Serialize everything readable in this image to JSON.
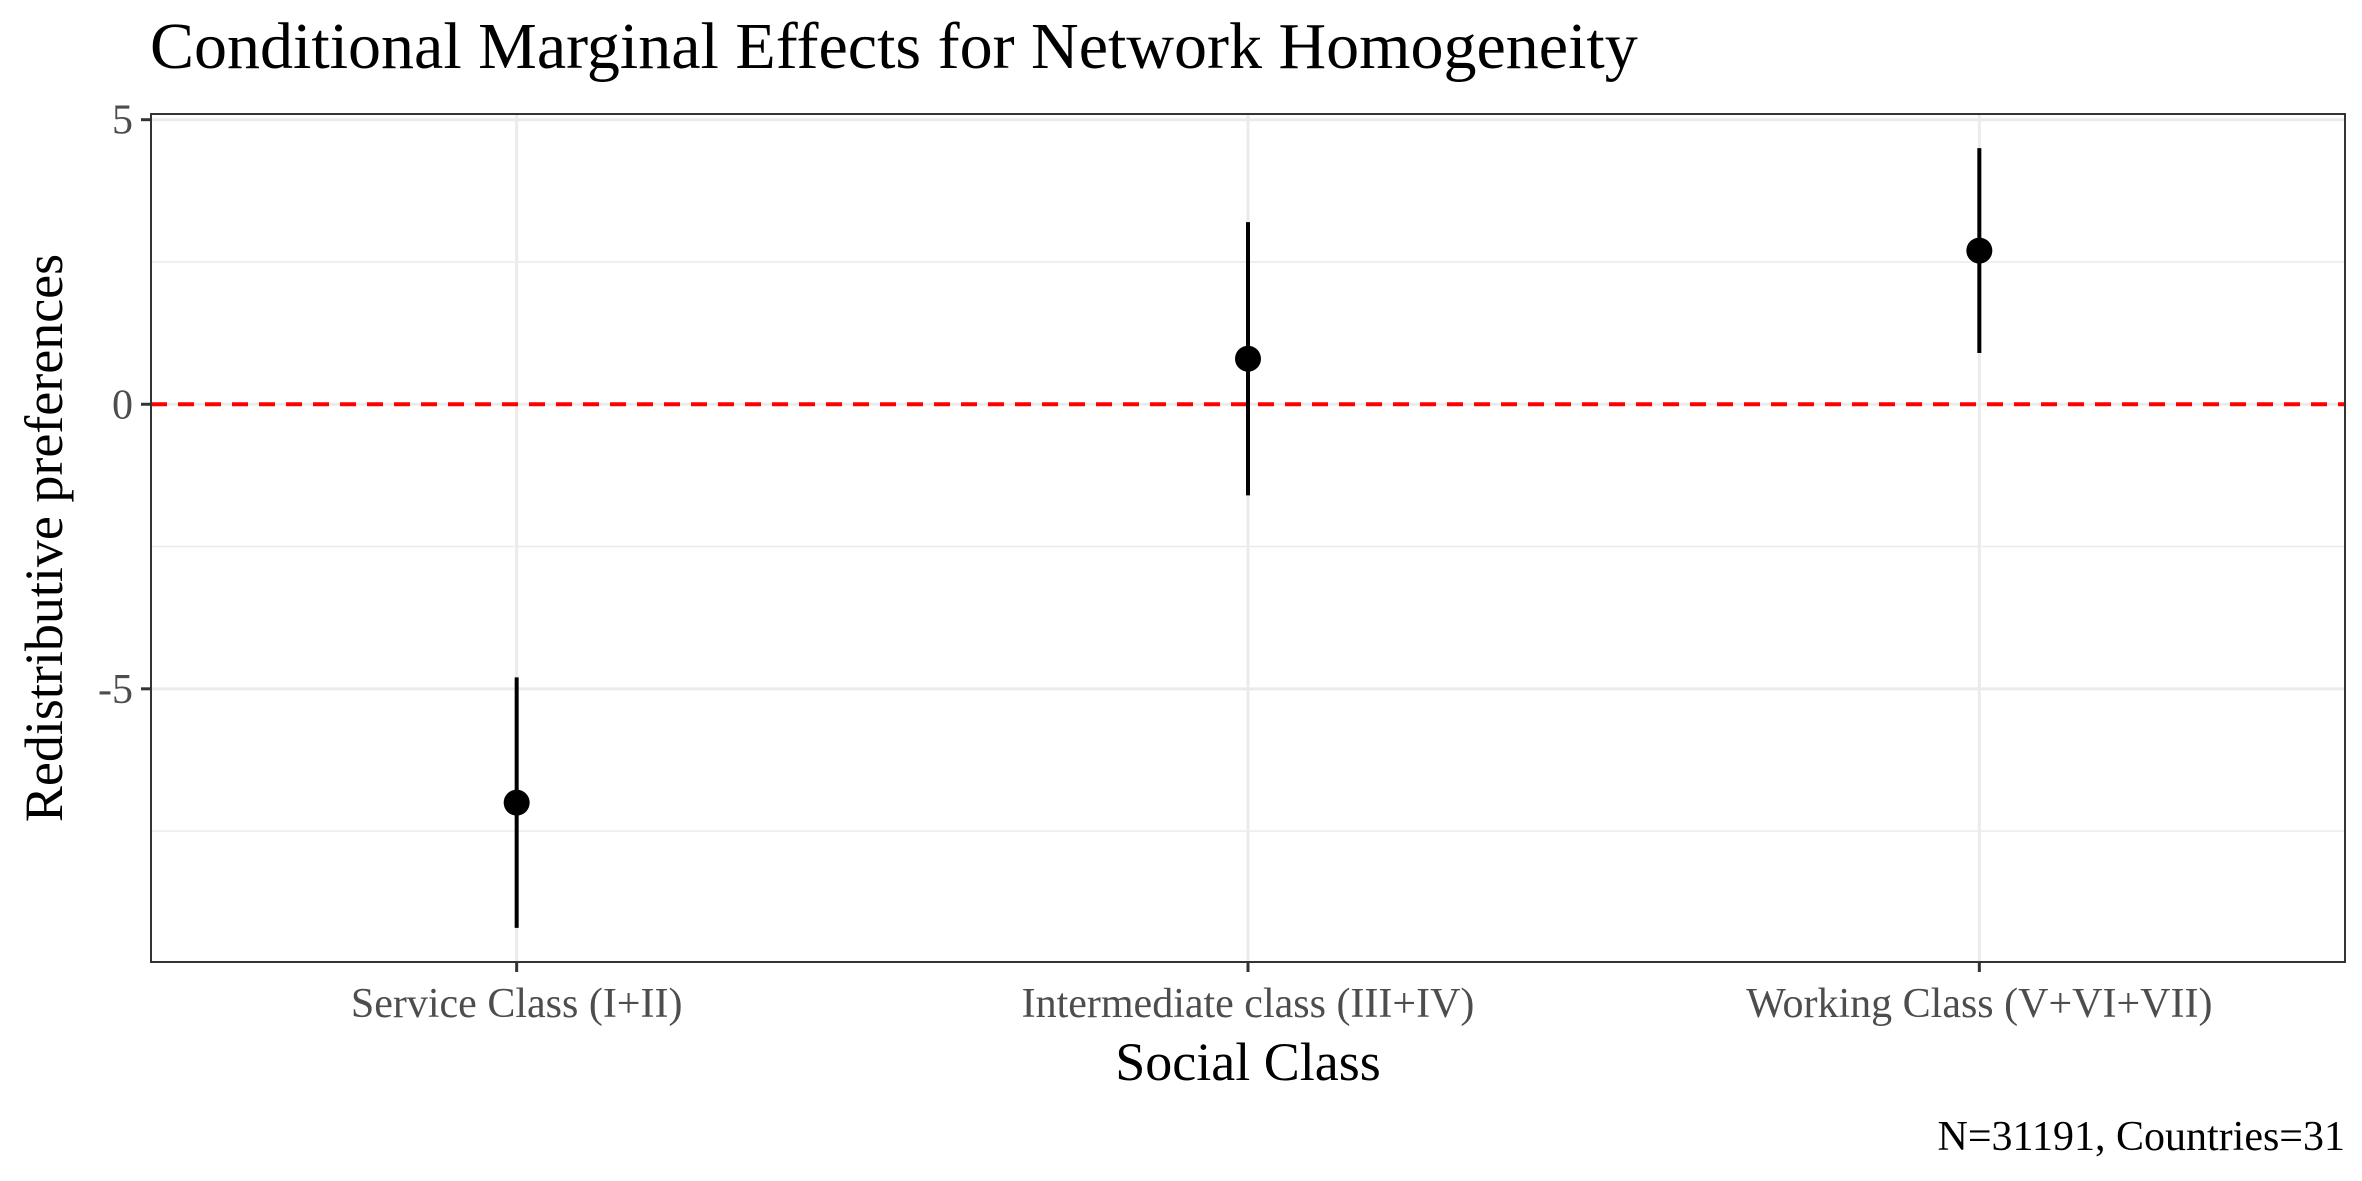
{
  "chart_data": {
    "type": "scatter",
    "title": "Conditional Marginal Effects for Network Homogeneity",
    "xlabel": "Social Class",
    "ylabel": "Redistributive preferences",
    "caption": "N=31191, Countries=31",
    "categories": [
      "Service Class (I+II)",
      "Intermediate class (III+IV)",
      "Working Class (V+VI+VII)"
    ],
    "estimates": [
      -7.0,
      0.8,
      2.7
    ],
    "ci_lower": [
      -9.2,
      -1.6,
      0.9
    ],
    "ci_upper": [
      -4.8,
      3.2,
      4.5
    ],
    "ylim": [
      -9.8,
      5.1
    ],
    "yticks": [
      5,
      0,
      -5
    ],
    "ytick_labels": [
      "5",
      "0",
      "-5"
    ],
    "reference_line": {
      "y": 0,
      "color": "#ff0000",
      "style": "dashed"
    },
    "grid": true,
    "colors": {
      "points": "#000000",
      "grid": "#ebebeb",
      "panel_border": "#333333"
    }
  }
}
